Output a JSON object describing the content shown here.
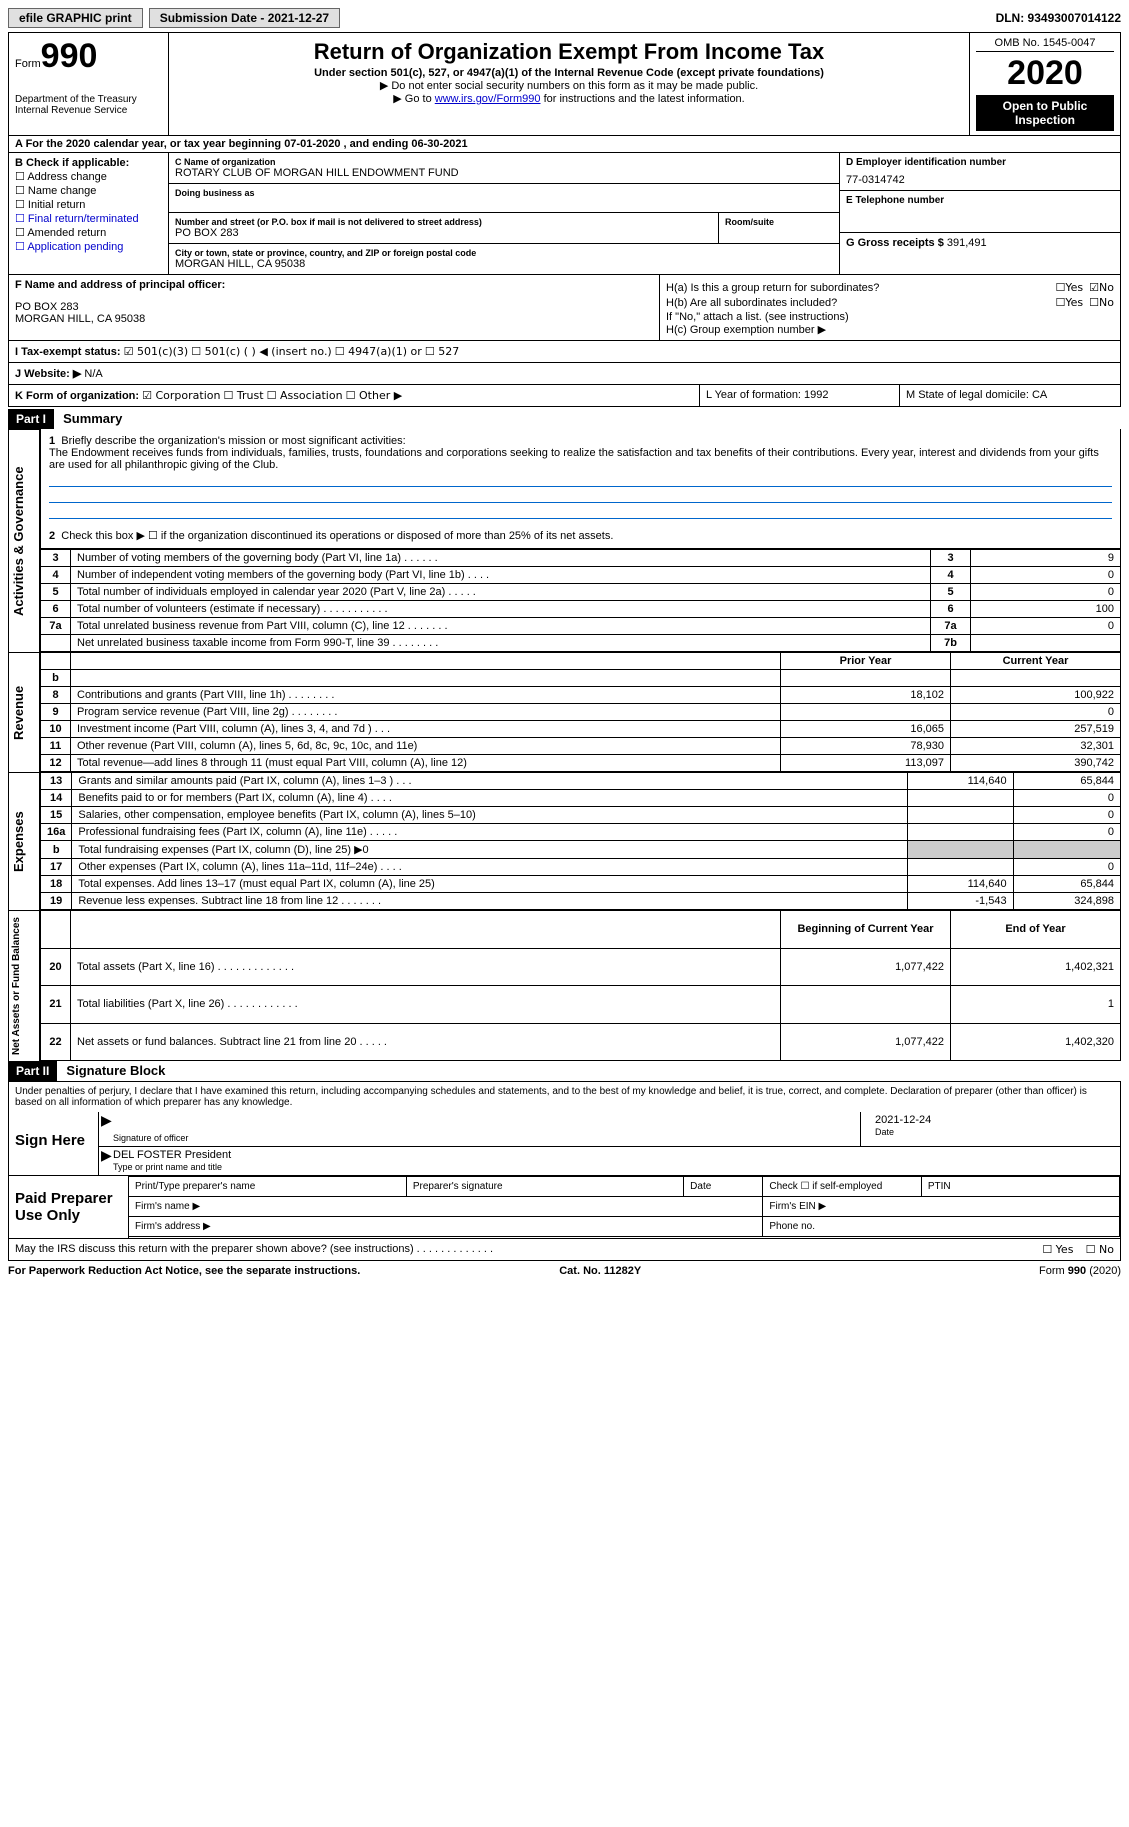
{
  "topbar": {
    "efile": "efile GRAPHIC print",
    "submission_label": "Submission Date - 2021-12-27",
    "dln": "DLN: 93493007014122"
  },
  "header": {
    "form_word": "Form",
    "form_num": "990",
    "dept": "Department of the Treasury\nInternal Revenue Service",
    "title": "Return of Organization Exempt From Income Tax",
    "subtitle": "Under section 501(c), 527, or 4947(a)(1) of the Internal Revenue Code (except private foundations)",
    "note1": "Do not enter social security numbers on this form as it may be made public.",
    "note2_a": "Go to ",
    "note2_link": "www.irs.gov/Form990",
    "note2_b": " for instructions and the latest information.",
    "omb": "OMB No. 1545-0047",
    "year": "2020",
    "open": "Open to Public Inspection"
  },
  "row_a": "A For the 2020 calendar year, or tax year beginning 07-01-2020    , and ending 06-30-2021",
  "section_b": {
    "label": "B Check if applicable:",
    "items": [
      "Address change",
      "Name change",
      "Initial return",
      "Final return/terminated",
      "Amended return",
      "Application pending"
    ]
  },
  "section_c": {
    "name_label": "C Name of organization",
    "name": "ROTARY CLUB OF MORGAN HILL ENDOWMENT FUND",
    "dba_label": "Doing business as",
    "street_label": "Number and street (or P.O. box if mail is not delivered to street address)",
    "room_label": "Room/suite",
    "street": "PO BOX 283",
    "city_label": "City or town, state or province, country, and ZIP or foreign postal code",
    "city": "MORGAN HILL, CA  95038"
  },
  "section_de": {
    "d_label": "D Employer identification number",
    "ein": "77-0314742",
    "e_label": "E Telephone number",
    "g_label": "G Gross receipts $",
    "g_val": "391,491"
  },
  "section_f": {
    "label": "F  Name and address of principal officer:",
    "line1": "PO BOX 283",
    "line2": "MORGAN HILL, CA  95038"
  },
  "section_h": {
    "ha": "H(a)  Is this a group return for subordinates?",
    "hb": "H(b)  Are all subordinates included?",
    "hb_note": "If \"No,\" attach a list. (see instructions)",
    "hc": "H(c)  Group exemption number ▶",
    "yes": "Yes",
    "no": "No"
  },
  "row_i": {
    "label": "I     Tax-exempt status:",
    "opt1": "501(c)(3)",
    "opt2": "501(c) (  ) ◀ (insert no.)",
    "opt3": "4947(a)(1) or",
    "opt4": "527"
  },
  "row_j": {
    "label": "J    Website: ▶",
    "val": "N/A"
  },
  "row_k": {
    "label": "K Form of organization:",
    "opts": [
      "Corporation",
      "Trust",
      "Association",
      "Other ▶"
    ]
  },
  "row_lm": {
    "l": "L Year of formation: 1992",
    "m": "M State of legal domicile: CA"
  },
  "part1": {
    "hdr": "Part I",
    "title": "Summary",
    "q1_label": "1",
    "q1": "Briefly describe the organization's mission or most significant activities:",
    "mission": "The Endowment receives funds from individuals, families, trusts, foundations and corporations seeking to realize the satisfaction and tax benefits of their contributions. Every year, interest and dividends from your gifts are used for all philanthropic giving of the Club.",
    "q2": "Check this box ▶ ☐  if the organization discontinued its operations or disposed of more than 25% of its net assets.",
    "vlabels": {
      "gov": "Activities & Governance",
      "rev": "Revenue",
      "exp": "Expenses",
      "net": "Net Assets or Fund Balances"
    },
    "col_prior": "Prior Year",
    "col_current": "Current Year",
    "col_begin": "Beginning of Current Year",
    "col_end": "End of Year",
    "gov_rows": [
      {
        "n": "3",
        "d": "Number of voting members of the governing body (Part VI, line 1a)   .    .    .    .    .    .",
        "box": "3",
        "v": "9"
      },
      {
        "n": "4",
        "d": "Number of independent voting members of the governing body (Part VI, line 1b)    .    .    .    .",
        "box": "4",
        "v": "0"
      },
      {
        "n": "5",
        "d": "Total number of individuals employed in calendar year 2020 (Part V, line 2a)    .    .    .    .    .",
        "box": "5",
        "v": "0"
      },
      {
        "n": "6",
        "d": "Total number of volunteers (estimate if necessary)    .    .    .    .    .    .    .    .    .    .    .",
        "box": "6",
        "v": "100"
      },
      {
        "n": "7a",
        "d": "Total unrelated business revenue from Part VIII, column (C), line 12    .    .    .    .    .    .    .",
        "box": "7a",
        "v": "0"
      },
      {
        "n": "",
        "d": "Net unrelated business taxable income from Form 990-T, line 39    .    .    .    .    .    .    .    .",
        "box": "7b",
        "v": ""
      }
    ],
    "rev_rows": [
      {
        "n": "b",
        "d": "",
        "p": "",
        "c": ""
      },
      {
        "n": "8",
        "d": "Contributions and grants (Part VIII, line 1h)    .    .    .    .    .    .    .    .",
        "p": "18,102",
        "c": "100,922"
      },
      {
        "n": "9",
        "d": "Program service revenue (Part VIII, line 2g)    .    .    .    .    .    .    .    .",
        "p": "",
        "c": "0"
      },
      {
        "n": "10",
        "d": "Investment income (Part VIII, column (A), lines 3, 4, and 7d )    .    .    .",
        "p": "16,065",
        "c": "257,519"
      },
      {
        "n": "11",
        "d": "Other revenue (Part VIII, column (A), lines 5, 6d, 8c, 9c, 10c, and 11e)",
        "p": "78,930",
        "c": "32,301"
      },
      {
        "n": "12",
        "d": "Total revenue—add lines 8 through 11 (must equal Part VIII, column (A), line 12)",
        "p": "113,097",
        "c": "390,742"
      }
    ],
    "exp_rows": [
      {
        "n": "13",
        "d": "Grants and similar amounts paid (Part IX, column (A), lines 1–3 )    .    .    .",
        "p": "114,640",
        "c": "65,844"
      },
      {
        "n": "14",
        "d": "Benefits paid to or for members (Part IX, column (A), line 4)    .    .    .    .",
        "p": "",
        "c": "0"
      },
      {
        "n": "15",
        "d": "Salaries, other compensation, employee benefits (Part IX, column (A), lines 5–10)",
        "p": "",
        "c": "0"
      },
      {
        "n": "16a",
        "d": "Professional fundraising fees (Part IX, column (A), line 11e)    .    .    .    .    .",
        "p": "",
        "c": "0"
      },
      {
        "n": "b",
        "d": "Total fundraising expenses (Part IX, column (D), line 25) ▶0",
        "p": "GREY",
        "c": "GREY"
      },
      {
        "n": "17",
        "d": "Other expenses (Part IX, column (A), lines 11a–11d, 11f–24e)    .    .    .    .",
        "p": "",
        "c": "0"
      },
      {
        "n": "18",
        "d": "Total expenses. Add lines 13–17 (must equal Part IX, column (A), line 25)",
        "p": "114,640",
        "c": "65,844"
      },
      {
        "n": "19",
        "d": "Revenue less expenses. Subtract line 18 from line 12    .    .    .    .    .    .    .",
        "p": "-1,543",
        "c": "324,898"
      }
    ],
    "net_rows": [
      {
        "n": "20",
        "d": "Total assets (Part X, line 16)    .    .    .    .    .    .    .    .    .    .    .    .    .",
        "p": "1,077,422",
        "c": "1,402,321"
      },
      {
        "n": "21",
        "d": "Total liabilities (Part X, line 26)    .    .    .    .    .    .    .    .    .    .    .    .",
        "p": "",
        "c": "1"
      },
      {
        "n": "22",
        "d": "Net assets or fund balances. Subtract line 21 from line 20    .    .    .    .    .",
        "p": "1,077,422",
        "c": "1,402,320"
      }
    ]
  },
  "part2": {
    "hdr": "Part II",
    "title": "Signature Block",
    "penalty": "Under penalties of perjury, I declare that I have examined this return, including accompanying schedules and statements, and to the best of my knowledge and belief, it is true, correct, and complete. Declaration of preparer (other than officer) is based on all information of which preparer has any knowledge.",
    "sign_here": "Sign Here",
    "sig_officer": "Signature of officer",
    "sig_date_val": "2021-12-24",
    "sig_date": "Date",
    "officer_name": "DEL FOSTER  President",
    "type_name": "Type or print name and title",
    "paid": "Paid Preparer Use Only",
    "prep_name": "Print/Type preparer's name",
    "prep_sig": "Preparer's signature",
    "prep_date": "Date",
    "prep_check": "Check ☐ if self-employed",
    "ptin": "PTIN",
    "firm_name": "Firm's name    ▶",
    "firm_ein": "Firm's EIN ▶",
    "firm_addr": "Firm's address ▶",
    "phone": "Phone no."
  },
  "footer": {
    "discuss": "May the IRS discuss this return with the preparer shown above? (see instructions)    .    .    .    .    .    .    .    .    .    .    .    .    .",
    "yes": "Yes",
    "no": "No",
    "pra": "For Paperwork Reduction Act Notice, see the separate instructions.",
    "cat": "Cat. No. 11282Y",
    "form": "Form 990 (2020)"
  }
}
